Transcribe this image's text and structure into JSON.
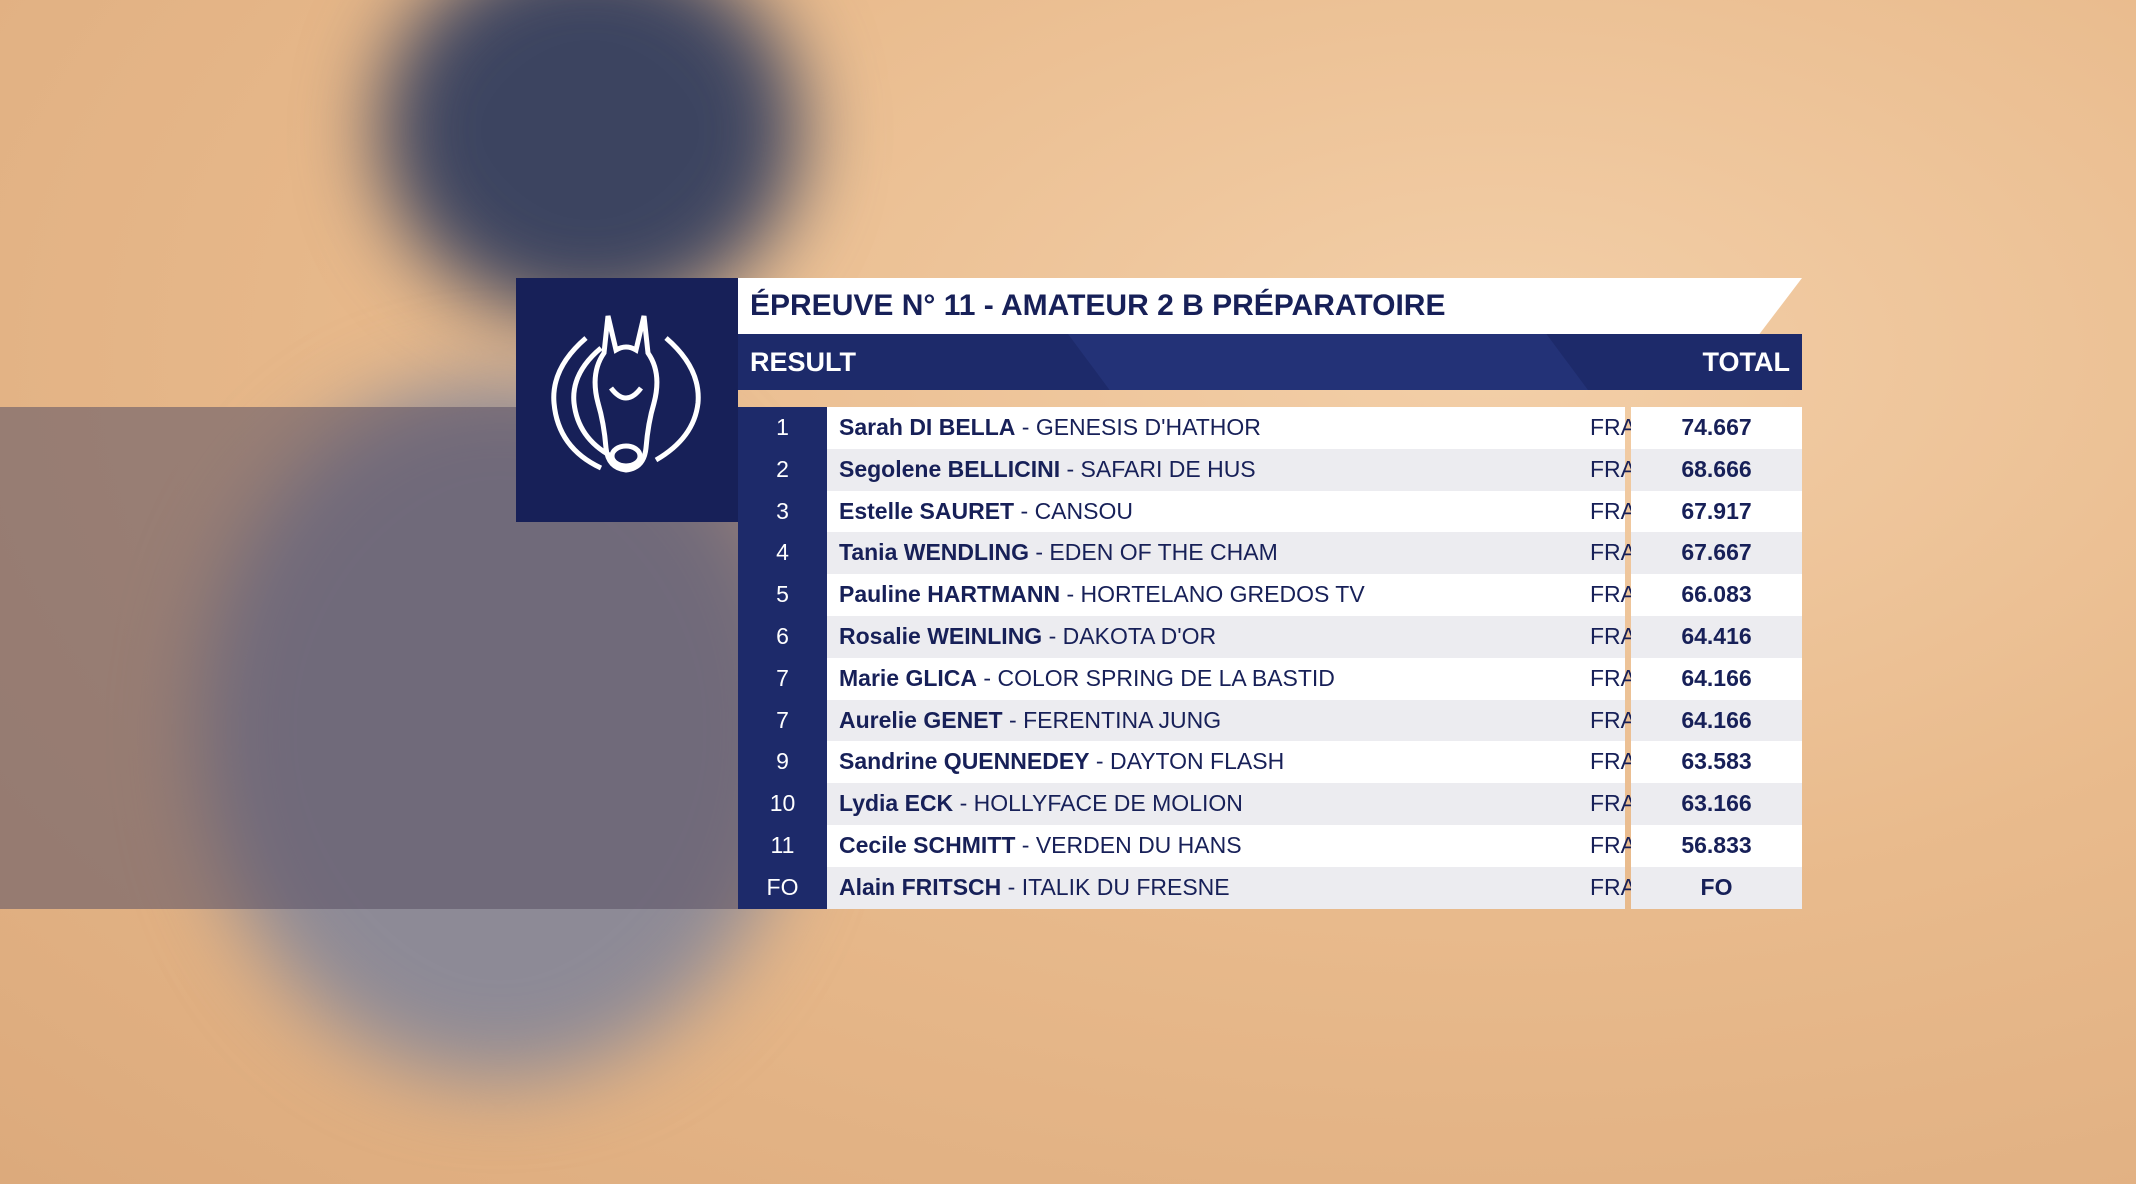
{
  "title": "ÉPREUVE N° 11 - AMATEUR 2 B PRÉPARATOIRE",
  "header": {
    "result": "RESULT",
    "total": "TOTAL"
  },
  "separator": "-",
  "rows": [
    {
      "rank": "1",
      "rider": "Sarah DI BELLA",
      "horse": "GENESIS D'HATHOR",
      "nation": "FRA",
      "total": "74.667"
    },
    {
      "rank": "2",
      "rider": "Segolene BELLICINI",
      "horse": "SAFARI DE HUS",
      "nation": "FRA",
      "total": "68.666"
    },
    {
      "rank": "3",
      "rider": "Estelle SAURET",
      "horse": "CANSOU",
      "nation": "FRA",
      "total": "67.917"
    },
    {
      "rank": "4",
      "rider": "Tania WENDLING",
      "horse": "EDEN OF THE CHAM",
      "nation": "FRA",
      "total": "67.667"
    },
    {
      "rank": "5",
      "rider": "Pauline HARTMANN",
      "horse": "HORTELANO GREDOS TV",
      "nation": "FRA",
      "total": "66.083"
    },
    {
      "rank": "6",
      "rider": "Rosalie WEINLING",
      "horse": "DAKOTA D'OR",
      "nation": "FRA",
      "total": "64.416"
    },
    {
      "rank": "7",
      "rider": "Marie GLICA",
      "horse": "COLOR SPRING DE LA BASTID",
      "nation": "FRA",
      "total": "64.166"
    },
    {
      "rank": "7",
      "rider": "Aurelie GENET",
      "horse": "FERENTINA JUNG",
      "nation": "FRA",
      "total": "64.166"
    },
    {
      "rank": "9",
      "rider": "Sandrine QUENNEDEY",
      "horse": "DAYTON FLASH",
      "nation": "FRA",
      "total": "63.583"
    },
    {
      "rank": "10",
      "rider": "Lydia ECK",
      "horse": "HOLLYFACE DE MOLION",
      "nation": "FRA",
      "total": "63.166"
    },
    {
      "rank": "11",
      "rider": "Cecile SCHMITT",
      "horse": "VERDEN DU HANS",
      "nation": "FRA",
      "total": "56.833"
    },
    {
      "rank": "FO",
      "rider": "Alain FRITSCH",
      "horse": "ITALIK DU FRESNE",
      "nation": "FRA",
      "total": "FO"
    }
  ]
}
